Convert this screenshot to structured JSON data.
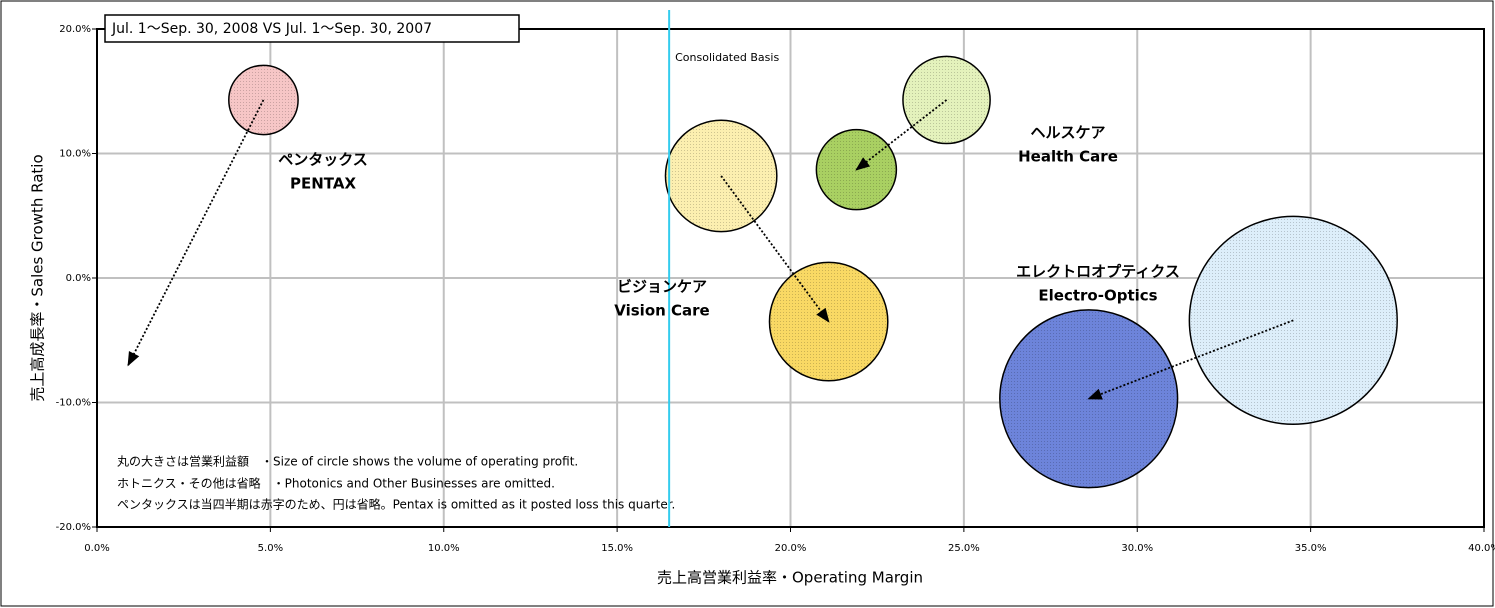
{
  "chart_data": {
    "type": "bubble",
    "subtitle": "Jul. 1〜Sep. 30, 2008 VS Jul. 1〜Sep. 30, 2007",
    "x_label": "売上高営業利益率・Operating Margin",
    "y_label": "売上高成長率・Sales Growth Ratio",
    "xlim": [
      0,
      40
    ],
    "ylim": [
      -20,
      20
    ],
    "xticks": [
      {
        "value": 0,
        "label": "0.0%"
      },
      {
        "value": 5,
        "label": "5.0%"
      },
      {
        "value": 10,
        "label": "10.0%"
      },
      {
        "value": 15,
        "label": "15.0%"
      },
      {
        "value": 20,
        "label": "20.0%"
      },
      {
        "value": 25,
        "label": "25.0%"
      },
      {
        "value": 30,
        "label": "30.0%"
      },
      {
        "value": 35,
        "label": "35.0%"
      },
      {
        "value": 40,
        "label": "40.0%"
      }
    ],
    "yticks": [
      {
        "value": -20,
        "label": "-20.0%"
      },
      {
        "value": -10,
        "label": "-10.0%"
      },
      {
        "value": 0,
        "label": "0.0%"
      },
      {
        "value": 10,
        "label": "10.0%"
      },
      {
        "value": 20,
        "label": "20.0%"
      }
    ],
    "negative_tick_color": "#ff0000",
    "grid": true,
    "reference_line": {
      "x": 16.5,
      "label": "Consolidated Basis",
      "color": "#33ccee"
    },
    "series": [
      {
        "label": [
          "ペンタックス",
          "PENTAX"
        ],
        "points": [
          {
            "x": 4.8,
            "y": 14.3,
            "size": 12,
            "color": "#f6c6c6"
          },
          {
            "x": 0.9,
            "y": -7.0,
            "size": null,
            "color": null
          }
        ]
      },
      {
        "label": [
          "ヘルスケア",
          "Health Care"
        ],
        "points": [
          {
            "x": 24.5,
            "y": 14.3,
            "size": 19,
            "color": "#e4f2bc"
          },
          {
            "x": 21.9,
            "y": 8.7,
            "size": 16,
            "color": "#a9d062"
          }
        ]
      },
      {
        "label": [
          "ビジョンケア",
          "Vision Care"
        ],
        "points": [
          {
            "x": 18.0,
            "y": 8.2,
            "size": 31,
            "color": "#fcefb0"
          },
          {
            "x": 21.1,
            "y": -3.5,
            "size": 35,
            "color": "#f9d964"
          }
        ]
      },
      {
        "label": [
          "エレクトロオプティクス",
          "Electro-Optics"
        ],
        "points": [
          {
            "x": 34.5,
            "y": -3.4,
            "size": 108,
            "color": "#ddeefa"
          },
          {
            "x": 28.6,
            "y": -9.7,
            "size": 79,
            "color": "#6d84da"
          }
        ]
      }
    ],
    "notes": [
      "丸の大きさは営業利益額　・Size of circle shows the volume of operating profit.",
      "ホトニクス・その他は省略　・Photonics and Other Businesses are omitted.",
      "ペンタックスは当四半期は赤字のため、円は省略。Pentax is omitted as it posted loss this quarter."
    ]
  }
}
